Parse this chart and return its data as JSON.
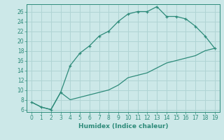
{
  "upper_x": [
    0,
    1,
    2,
    3,
    4,
    5,
    6,
    7,
    8,
    9,
    10,
    11,
    12,
    13,
    14,
    15,
    16,
    17,
    18,
    19
  ],
  "upper_y": [
    7.5,
    6.5,
    6.0,
    9.5,
    15.0,
    17.5,
    19.0,
    21.0,
    22.0,
    24.0,
    25.5,
    26.0,
    26.0,
    27.0,
    25.0,
    25.0,
    24.5,
    23.0,
    21.0,
    18.5
  ],
  "lower_x": [
    0,
    1,
    2,
    3,
    4,
    5,
    6,
    7,
    8,
    9,
    10,
    11,
    12,
    13,
    14,
    15,
    16,
    17,
    18,
    19
  ],
  "lower_y": [
    7.5,
    6.5,
    6.0,
    9.5,
    8.0,
    8.5,
    9.0,
    9.5,
    10.0,
    11.0,
    12.5,
    13.0,
    13.5,
    14.5,
    15.5,
    16.0,
    16.5,
    17.0,
    18.0,
    18.5
  ],
  "line_color": "#2e8b7a",
  "bg_color": "#cce8e8",
  "grid_color": "#b0d4d4",
  "xlabel": "Humidex (Indice chaleur)",
  "xlim": [
    -0.5,
    19.5
  ],
  "ylim": [
    5.5,
    27.5
  ],
  "xticks": [
    0,
    1,
    2,
    3,
    4,
    5,
    6,
    7,
    8,
    9,
    10,
    11,
    12,
    13,
    14,
    15,
    16,
    17,
    18,
    19
  ],
  "yticks": [
    6,
    8,
    10,
    12,
    14,
    16,
    18,
    20,
    22,
    24,
    26
  ]
}
